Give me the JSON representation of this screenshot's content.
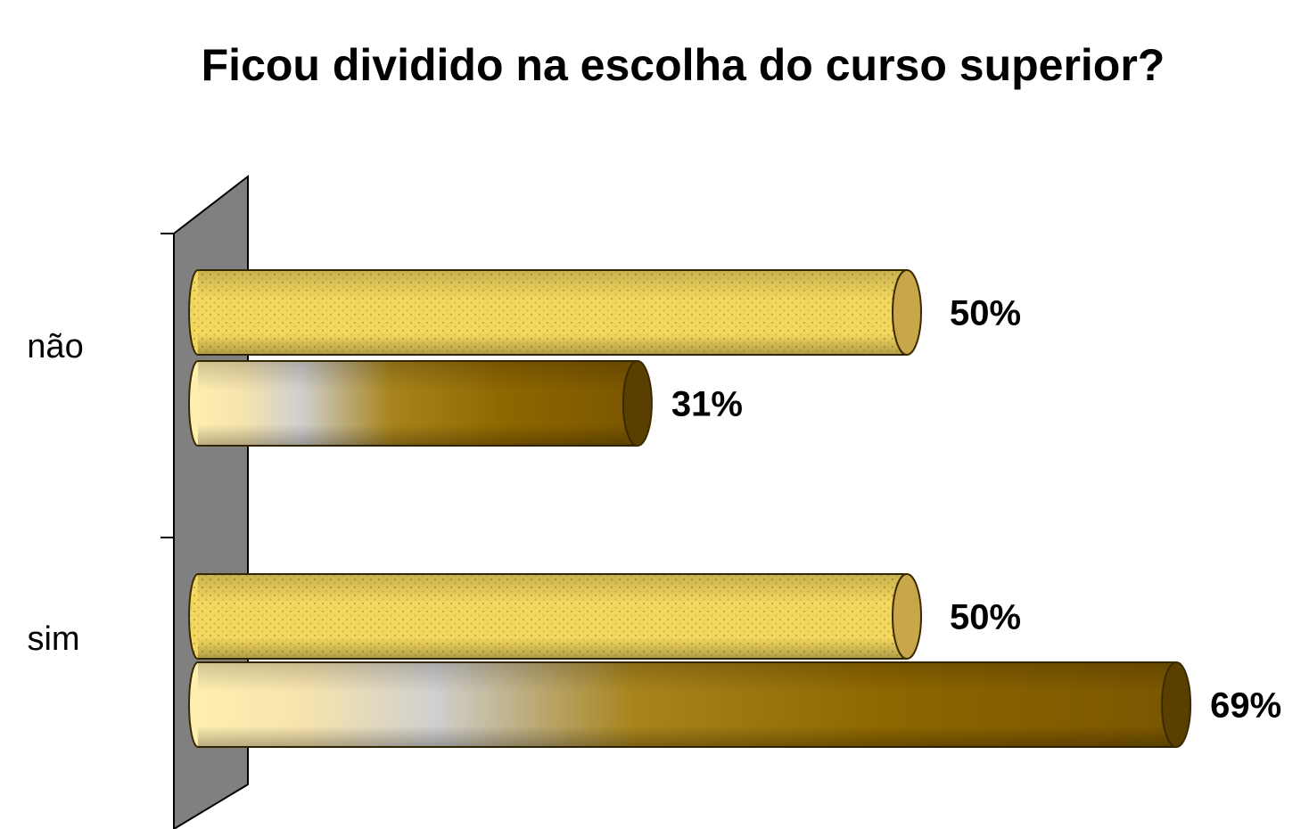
{
  "chart_data": {
    "type": "bar",
    "orientation": "horizontal",
    "style": "3d-cylinder",
    "title": "Ficou dividido na escolha do curso superior?",
    "xlabel": "",
    "ylabel": "",
    "categories": [
      "não",
      "sim"
    ],
    "series": [
      {
        "values": [
          50,
          50
        ],
        "labels": [
          "50%",
          "50%"
        ],
        "color": "#f0d060",
        "pattern": "dotted"
      },
      {
        "values": [
          31,
          69
        ],
        "labels": [
          "31%",
          "69%"
        ],
        "color": "#9a7000",
        "pattern": "gradient"
      }
    ],
    "xlim": [
      0,
      100
    ],
    "unit": "%",
    "legend": "none",
    "grid": false
  }
}
